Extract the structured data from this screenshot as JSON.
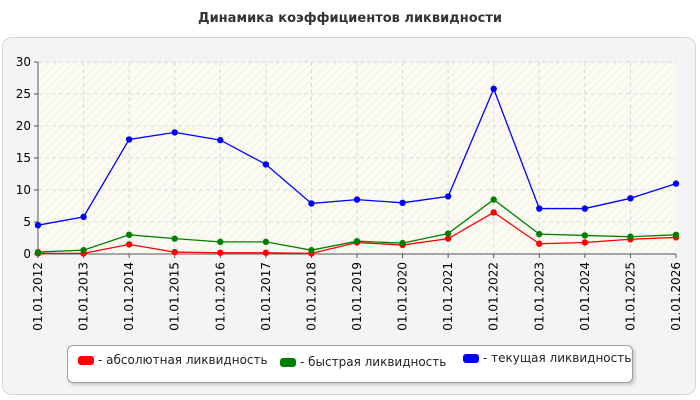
{
  "chart_data": {
    "type": "line",
    "title": "Динамика коэффициентов ликвидности",
    "categories": [
      "01.01.2012",
      "01.01.2013",
      "01.01.2014",
      "01.01.2015",
      "01.01.2016",
      "01.01.2017",
      "01.01.2018",
      "01.01.2019",
      "01.01.2020",
      "01.01.2021",
      "01.01.2022",
      "01.01.2023",
      "01.01.2024",
      "01.01.2025",
      "01.01.2026"
    ],
    "ylim": [
      0,
      30
    ],
    "yticks": [
      0,
      5,
      10,
      15,
      20,
      25,
      30
    ],
    "grid": true,
    "legend_position": "bottom",
    "series": [
      {
        "name": "- абсолютная ликвидность",
        "color": "#ff0000",
        "values": [
          0.1,
          0.1,
          1.5,
          0.3,
          0.2,
          0.2,
          0.1,
          1.8,
          1.4,
          2.4,
          6.5,
          1.6,
          1.8,
          2.3,
          2.6
        ]
      },
      {
        "name": "- быстрая ликвидность",
        "color": "#008000",
        "values": [
          0.3,
          0.6,
          3.0,
          2.4,
          1.9,
          1.9,
          0.6,
          2.0,
          1.7,
          3.2,
          8.5,
          3.1,
          2.9,
          2.7,
          3.0
        ]
      },
      {
        "name": "- текущая ликвидность",
        "color": "#0000ff",
        "values": [
          4.5,
          5.8,
          17.9,
          19.0,
          17.8,
          14.0,
          7.9,
          8.5,
          8.0,
          9.0,
          25.8,
          7.1,
          7.1,
          8.7,
          11.0
        ]
      }
    ]
  }
}
